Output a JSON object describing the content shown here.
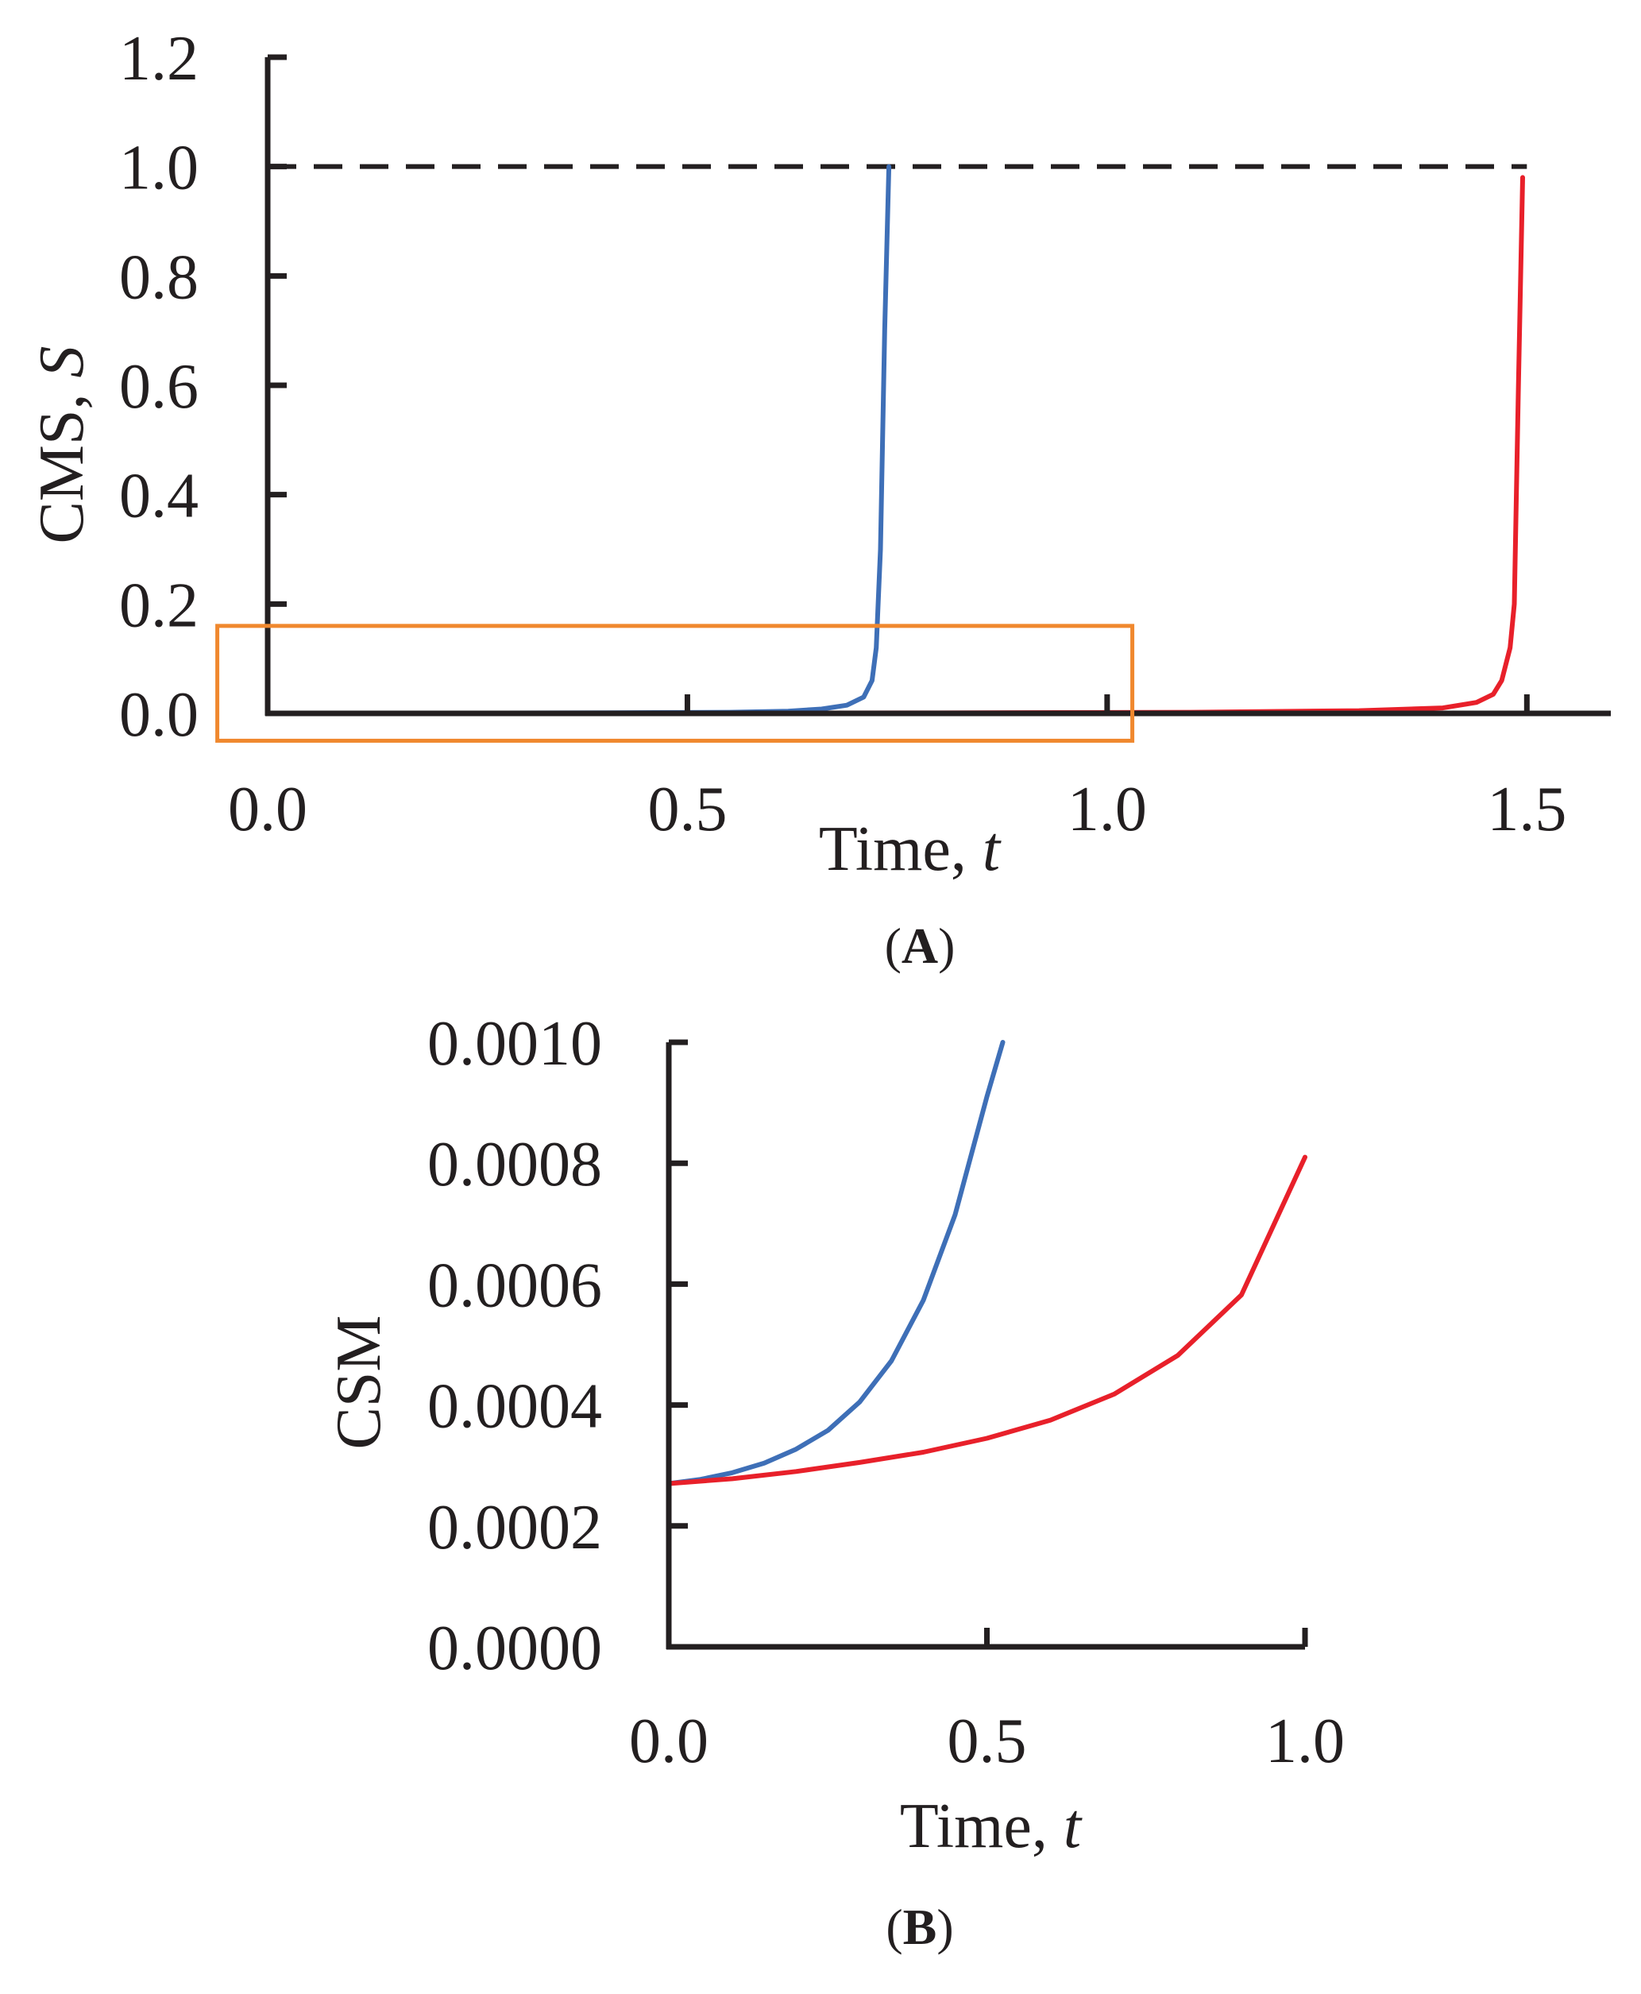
{
  "colors": {
    "axis": "#231f20",
    "series_1": "#3e6fb7",
    "series_2": "#e8202a",
    "threshold": "#231f20",
    "zoom_box": "#f0882e"
  },
  "chart_data": [
    {
      "type": "line",
      "panel_label": "A",
      "xlabel": "Time, ",
      "xlabel_var": "t",
      "ylabel": "CMS, ",
      "ylabel_var": "S",
      "xlim": [
        0.0,
        1.6
      ],
      "ylim": [
        0.0,
        1.2
      ],
      "x_ticks": [
        "0.0",
        "0.5",
        "1.0",
        "1.5"
      ],
      "y_ticks": [
        "0.0",
        "0.2",
        "0.4",
        "0.6",
        "0.8",
        "1.0",
        "1.2"
      ],
      "grid": false,
      "reference_line": {
        "y": 1.0,
        "style": "dashed",
        "x_range": [
          0.0,
          1.5
        ]
      },
      "zoom_box": {
        "x_range": [
          -0.06,
          1.03
        ],
        "y_range": [
          -0.05,
          0.16
        ]
      },
      "series": [
        {
          "color": "#3e6fb7",
          "x": [
            0.0,
            0.2,
            0.4,
            0.55,
            0.62,
            0.66,
            0.69,
            0.71,
            0.72,
            0.725,
            0.73,
            0.735,
            0.74
          ],
          "y": [
            0.0003,
            0.0005,
            0.001,
            0.002,
            0.004,
            0.008,
            0.015,
            0.03,
            0.06,
            0.12,
            0.3,
            0.7,
            1.0
          ]
        },
        {
          "color": "#e8202a",
          "x": [
            0.0,
            0.4,
            0.8,
            1.1,
            1.3,
            1.4,
            1.44,
            1.46,
            1.47,
            1.48,
            1.485,
            1.49,
            1.495
          ],
          "y": [
            0.0003,
            0.0004,
            0.0008,
            0.002,
            0.005,
            0.01,
            0.02,
            0.035,
            0.06,
            0.12,
            0.2,
            0.6,
            0.98
          ]
        }
      ]
    },
    {
      "type": "line",
      "panel_label": "B",
      "xlabel": "Time, ",
      "xlabel_var": "t",
      "ylabel": "CSM",
      "xlim": [
        0.0,
        1.0
      ],
      "ylim": [
        0.0,
        0.001
      ],
      "x_ticks": [
        "0.0",
        "0.5",
        "1.0"
      ],
      "y_ticks": [
        "0.0000",
        "0.0002",
        "0.0004",
        "0.0006",
        "0.0008",
        "0.0010"
      ],
      "grid": false,
      "series": [
        {
          "color": "#3e6fb7",
          "x": [
            0.0,
            0.05,
            0.1,
            0.15,
            0.2,
            0.25,
            0.3,
            0.35,
            0.4,
            0.45,
            0.5,
            0.525
          ],
          "y": [
            0.00027,
            0.000277,
            0.000288,
            0.000304,
            0.000327,
            0.000358,
            0.000405,
            0.000473,
            0.000573,
            0.000715,
            0.00091,
            0.001
          ]
        },
        {
          "color": "#e8202a",
          "x": [
            0.0,
            0.1,
            0.2,
            0.3,
            0.4,
            0.5,
            0.6,
            0.7,
            0.8,
            0.9,
            1.0
          ],
          "y": [
            0.00027,
            0.000278,
            0.00029,
            0.000305,
            0.000322,
            0.000345,
            0.000375,
            0.000418,
            0.000482,
            0.000582,
            0.00081
          ]
        }
      ]
    }
  ]
}
